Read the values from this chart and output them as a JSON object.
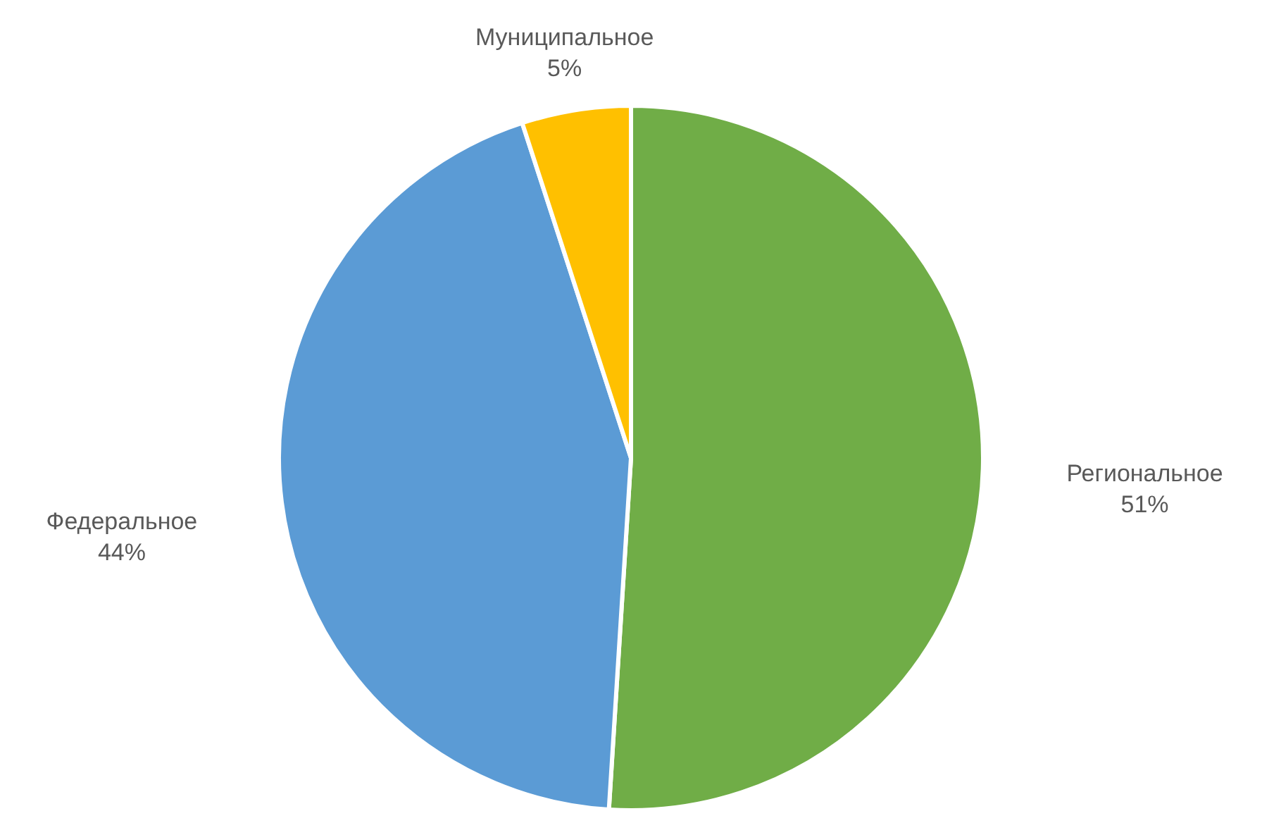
{
  "chart_data": {
    "type": "pie",
    "categories": [
      "Региональное",
      "Федеральное",
      "Муниципальное"
    ],
    "values": [
      51,
      44,
      5
    ],
    "value_labels": [
      "51%",
      "44%",
      "5%"
    ],
    "colors": [
      "#70ad47",
      "#5b9bd5",
      "#ffc000"
    ]
  }
}
